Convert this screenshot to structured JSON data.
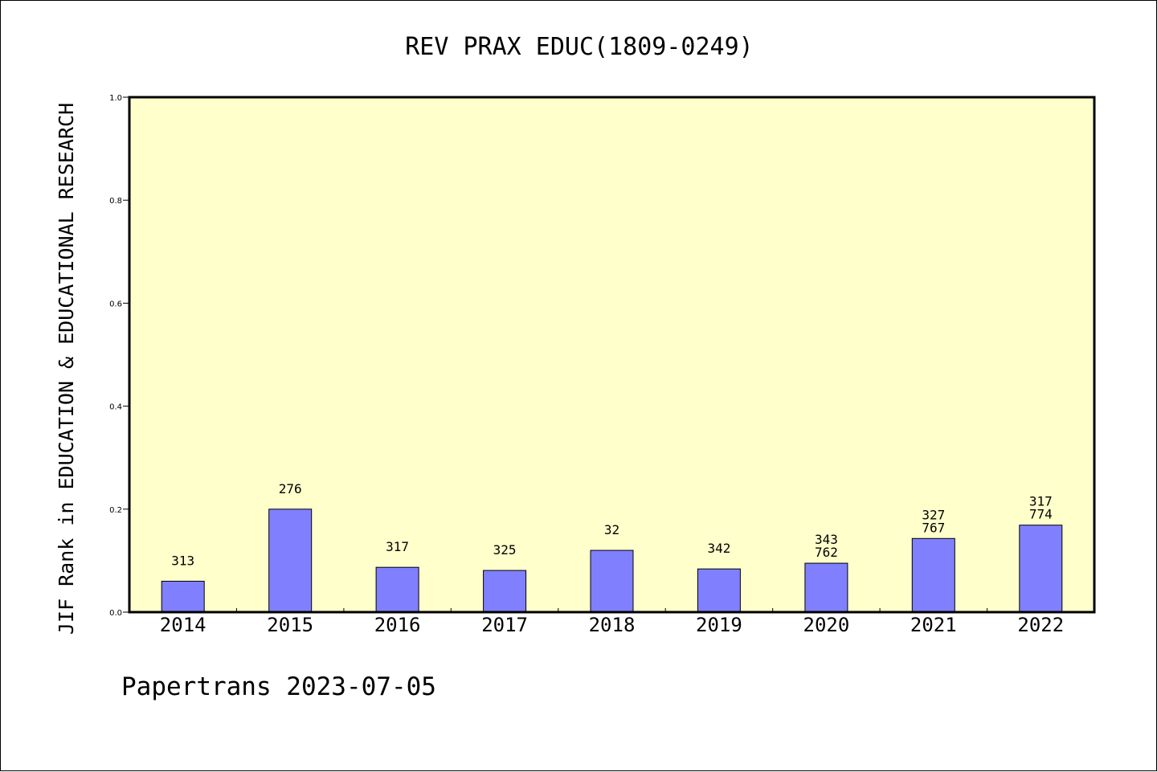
{
  "chart_data": {
    "type": "bar",
    "title": "REV PRAX EDUC(1809-0249)",
    "xlabel": "",
    "ylabel": "JIF Rank in EDUCATION & EDUCATIONAL RESEARCH",
    "categories": [
      "2014",
      "2015",
      "2016",
      "2017",
      "2018",
      "2019",
      "2020",
      "2021",
      "2022"
    ],
    "values": [
      0.06,
      0.2,
      0.087,
      0.081,
      0.12,
      0.084,
      0.095,
      0.143,
      0.169
    ],
    "data_labels": [
      [
        "313"
      ],
      [
        "276"
      ],
      [
        "317"
      ],
      [
        "325"
      ],
      [
        "32"
      ],
      [
        "342"
      ],
      [
        "343",
        "762"
      ],
      [
        "327",
        "767"
      ],
      [
        "317",
        "774"
      ]
    ],
    "ylim": [
      0,
      1.0
    ],
    "yticks": [
      "0.0",
      "0.2",
      "0.4",
      "0.6",
      "0.8",
      "1.0"
    ],
    "ytick_values": [
      0,
      0.2,
      0.4,
      0.6,
      0.8,
      1.0
    ],
    "grid": false,
    "colors": {
      "plot_background": "#ffffcc",
      "bar_fill": "#8080ff",
      "bar_stroke": "#000000",
      "axis": "#000000"
    }
  },
  "footer": {
    "text": "Papertrans 2023-07-05"
  }
}
